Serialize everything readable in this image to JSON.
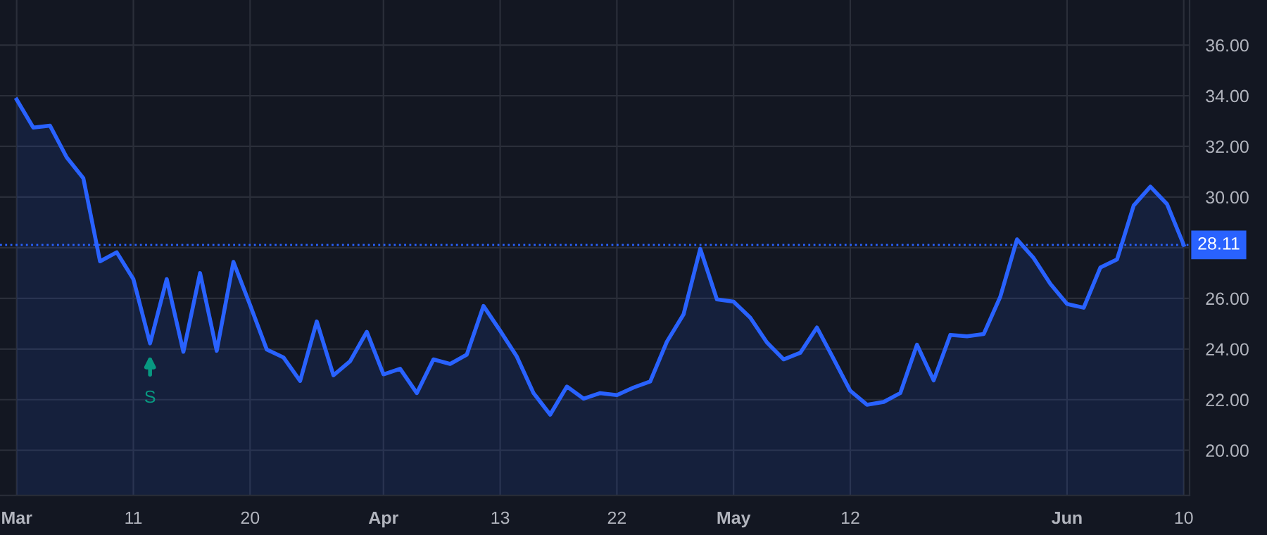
{
  "chart_data": {
    "type": "area",
    "categories": [
      "Mar",
      null,
      null,
      null,
      null,
      null,
      null,
      "11",
      null,
      null,
      null,
      null,
      null,
      null,
      "20",
      null,
      null,
      null,
      null,
      null,
      null,
      null,
      "Apr",
      null,
      null,
      null,
      null,
      null,
      null,
      "13",
      null,
      null,
      null,
      null,
      null,
      null,
      "22",
      null,
      null,
      null,
      null,
      null,
      null,
      "May",
      null,
      null,
      null,
      null,
      null,
      null,
      "12",
      null,
      null,
      null,
      null,
      null,
      null,
      null,
      null,
      null,
      null,
      null,
      null,
      "Jun",
      null,
      null,
      null,
      null,
      null,
      null,
      "10"
    ],
    "series": [
      {
        "color": "#2962ff",
        "values": [
          33.85,
          32.74,
          32.82,
          31.57,
          30.74,
          27.46,
          27.82,
          26.76,
          24.22,
          26.76,
          23.89,
          27.0,
          23.93,
          27.44,
          25.74,
          23.98,
          23.67,
          22.74,
          25.09,
          22.96,
          23.52,
          24.68,
          23.0,
          23.22,
          22.26,
          23.59,
          23.41,
          23.78,
          25.7,
          24.72,
          23.7,
          22.26,
          21.41,
          22.52,
          22.04,
          22.26,
          22.18,
          22.48,
          22.72,
          24.29,
          25.37,
          27.96,
          25.96,
          25.87,
          25.24,
          24.26,
          23.59,
          23.85,
          24.85,
          23.61,
          22.35,
          21.8,
          21.91,
          22.26,
          24.17,
          22.76,
          24.56,
          24.5,
          24.59,
          26.07,
          28.33,
          27.59,
          26.57,
          25.78,
          25.63,
          27.22,
          27.54,
          29.67,
          30.41,
          29.72,
          28.11
        ]
      }
    ],
    "ylim": [
      18.22,
      37.78
    ],
    "yticks": [
      {
        "value": 20,
        "label": "20.00"
      },
      {
        "value": 22,
        "label": "22.00"
      },
      {
        "value": 24,
        "label": "24.00"
      },
      {
        "value": 26,
        "label": "26.00"
      },
      {
        "value": 28,
        "label": null
      },
      {
        "value": 30,
        "label": "30.00"
      },
      {
        "value": 32,
        "label": "32.00"
      },
      {
        "value": 34,
        "label": "34.00"
      },
      {
        "value": 36,
        "label": "36.00"
      }
    ],
    "ref_lines": [
      {
        "axis": "y",
        "value": 28.11,
        "label": "28.11",
        "color": "#2962ff",
        "line_style": "dotted"
      }
    ],
    "annotations": [
      {
        "text": "S",
        "y": 24.22
      }
    ],
    "grid": true,
    "marker": "none",
    "line_style": "solid"
  }
}
